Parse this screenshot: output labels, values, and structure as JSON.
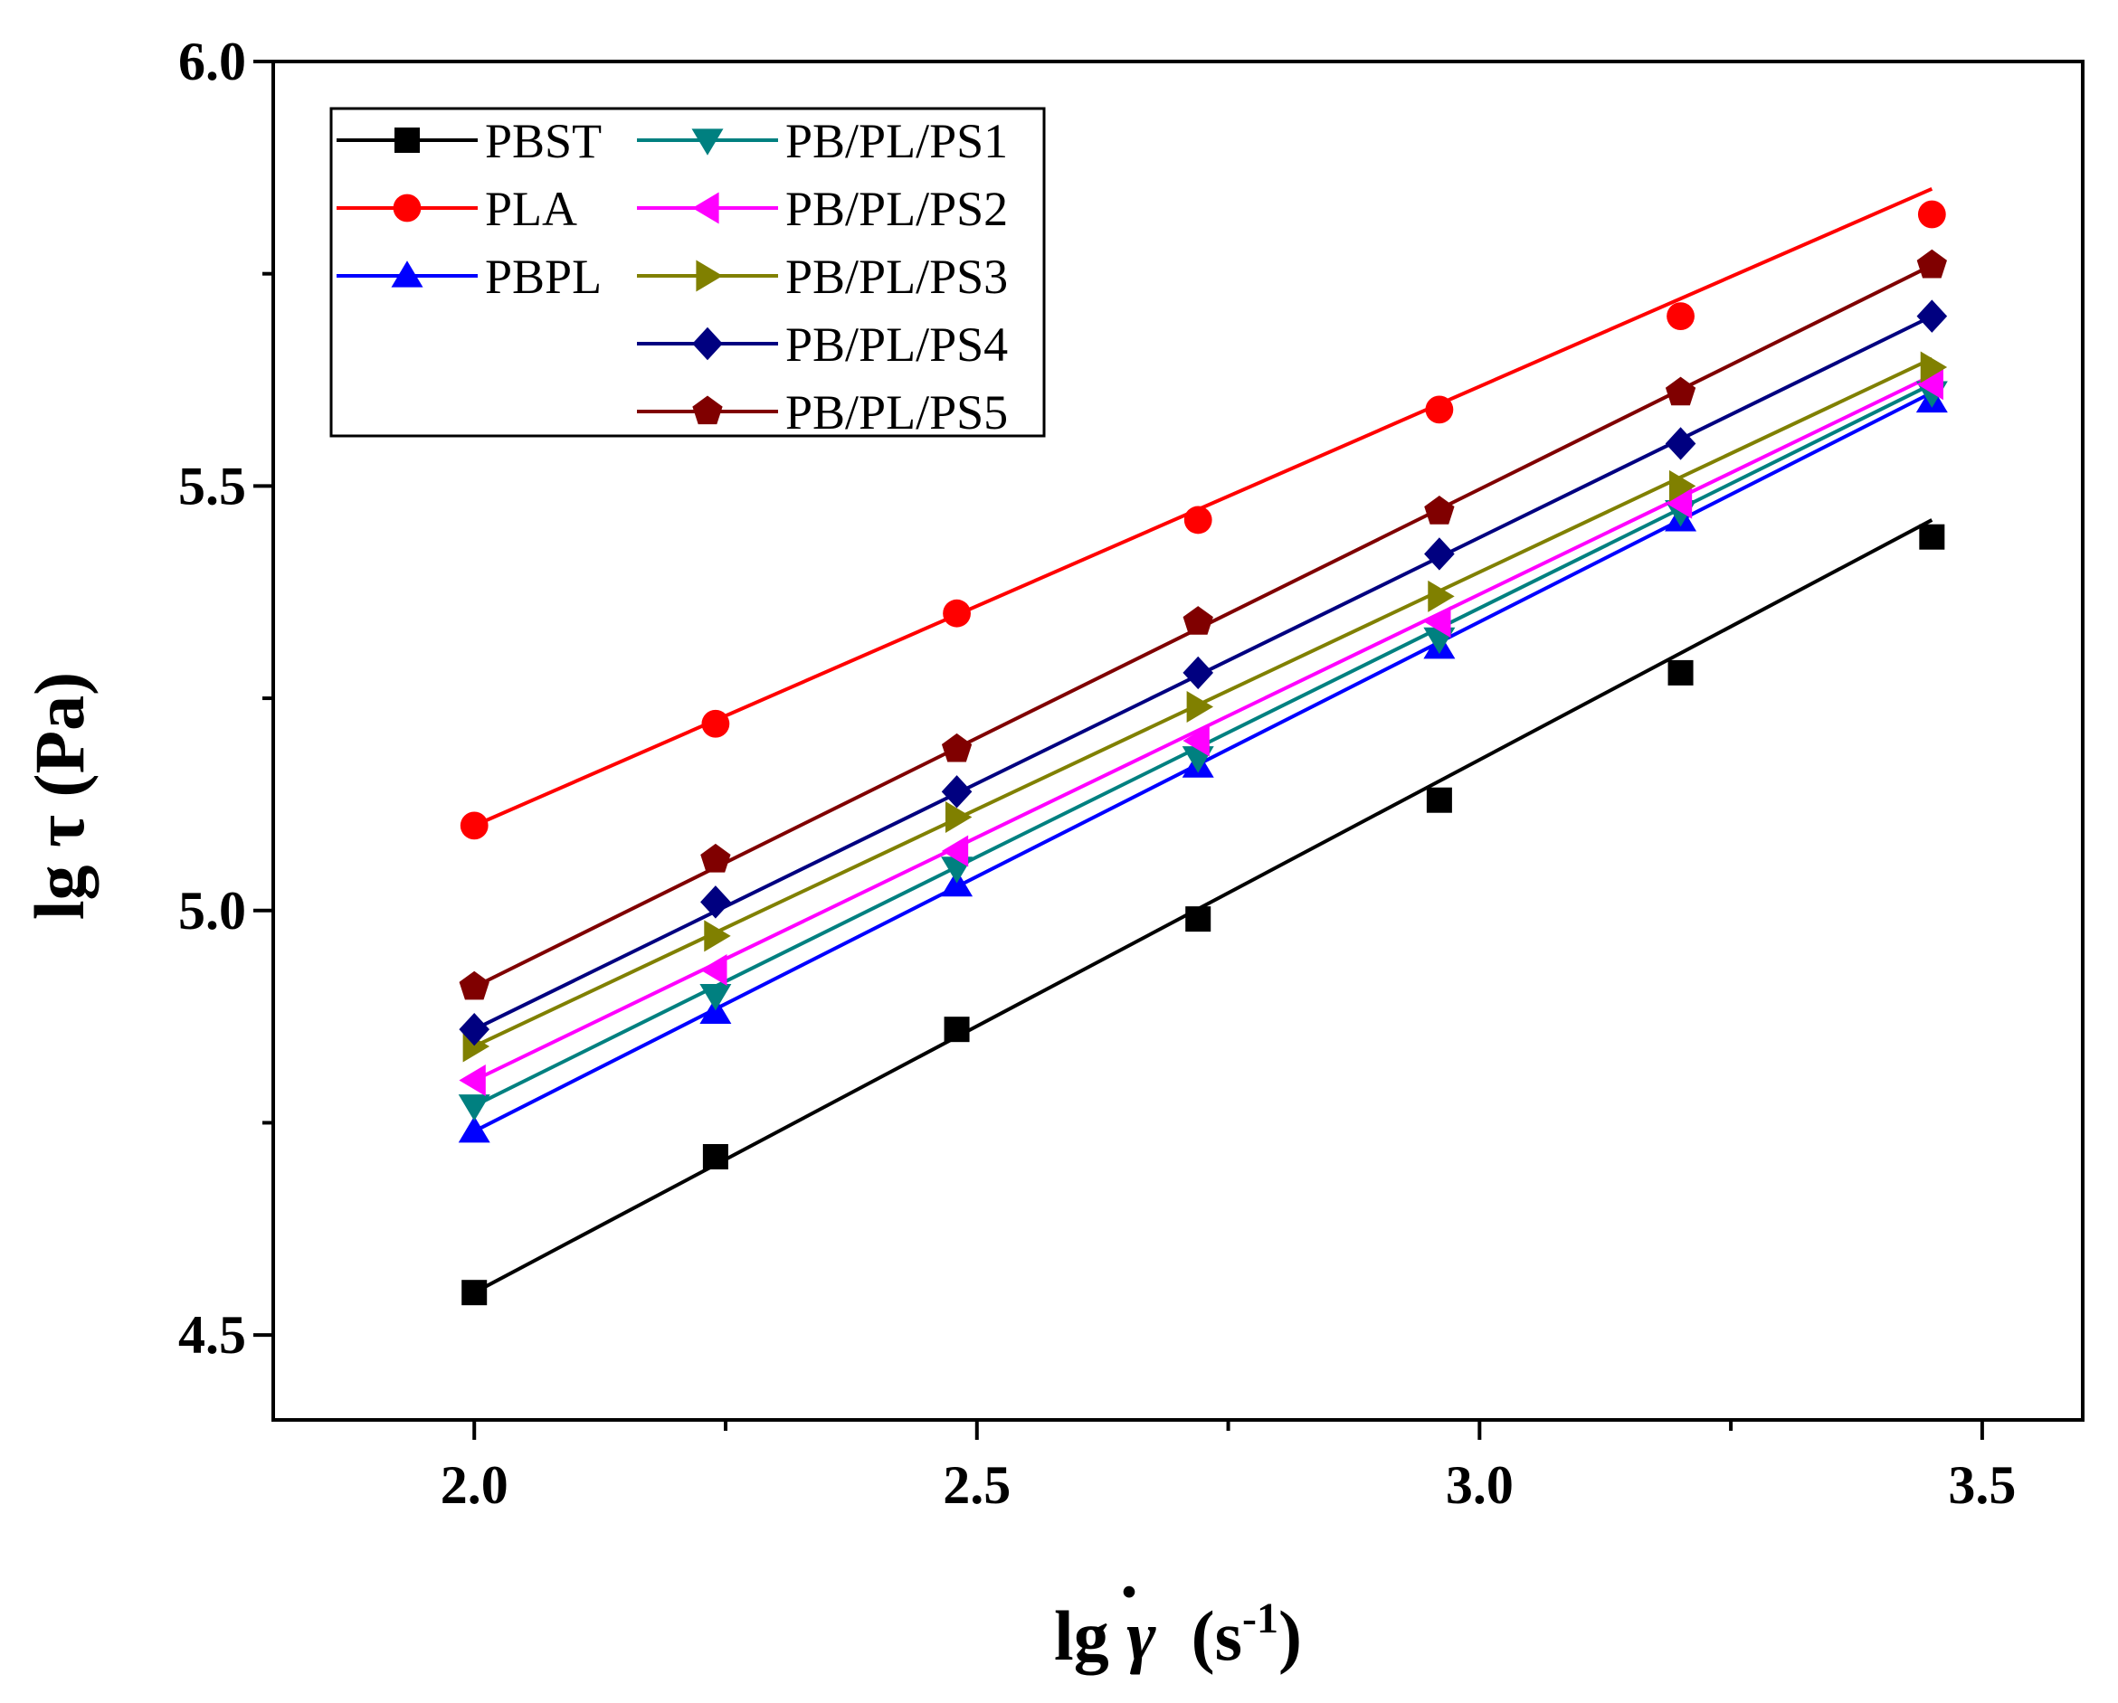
{
  "chart_data": {
    "type": "line",
    "title": "",
    "xlabel": "lg γ̇  (s⁻¹)",
    "xlabel_parts": {
      "prefix": "lg ",
      "symbol": "γ",
      "dot": "·",
      "unit_open": "  (s",
      "superscript": "-1",
      "unit_close": ")"
    },
    "ylabel": "lg τ  (Pa)",
    "xlim": [
      1.8,
      3.6
    ],
    "ylim": [
      4.4,
      6.0
    ],
    "xticks": [
      2.0,
      2.5,
      3.0,
      3.5
    ],
    "xtick_labels": [
      "2.0",
      "2.5",
      "3.0",
      "3.5"
    ],
    "xminor": [
      2.25,
      2.75,
      3.25
    ],
    "yticks": [
      4.5,
      5.0,
      5.5,
      6.0
    ],
    "ytick_labels": [
      "4.5",
      "5.0",
      "5.5",
      "6.0"
    ],
    "yminor": [
      4.75,
      5.25,
      5.75
    ],
    "grid": false,
    "legend_position": "top-left",
    "x": [
      2.0,
      2.24,
      2.48,
      2.72,
      2.96,
      3.2,
      3.45
    ],
    "series": [
      {
        "name": "PBST",
        "color": "#000000",
        "marker": "square",
        "values": [
          4.55,
          4.71,
          4.86,
          4.99,
          5.13,
          5.28,
          5.44
        ],
        "fit": [
          [
            2.0,
            4.55
          ],
          [
            3.45,
            5.46
          ]
        ]
      },
      {
        "name": "PLA",
        "color": "#ff0000",
        "marker": "circle",
        "values": [
          5.1,
          5.22,
          5.35,
          5.46,
          5.59,
          5.7,
          5.82
        ],
        "fit": [
          [
            2.0,
            5.1
          ],
          [
            3.45,
            5.85
          ]
        ]
      },
      {
        "name": "PBPL",
        "color": "#0000ff",
        "marker": "triangle-up",
        "values": [
          4.74,
          4.88,
          5.03,
          5.17,
          5.31,
          5.46,
          5.6
        ],
        "fit": [
          [
            2.0,
            4.74
          ],
          [
            3.45,
            5.61
          ]
        ]
      },
      {
        "name": "PB/PL/PS1",
        "color": "#008080",
        "marker": "triangle-down",
        "values": [
          4.77,
          4.9,
          5.05,
          5.18,
          5.32,
          5.47,
          5.61
        ],
        "fit": [
          [
            2.0,
            4.77
          ],
          [
            3.45,
            5.62
          ]
        ]
      },
      {
        "name": "PB/PL/PS2",
        "color": "#ff00ff",
        "marker": "triangle-left",
        "values": [
          4.8,
          4.93,
          5.07,
          5.2,
          5.34,
          5.48,
          5.62
        ],
        "fit": [
          [
            2.0,
            4.8
          ],
          [
            3.45,
            5.63
          ]
        ]
      },
      {
        "name": "PB/PL/PS3",
        "color": "#808000",
        "marker": "triangle-right",
        "values": [
          4.84,
          4.97,
          5.11,
          5.24,
          5.37,
          5.5,
          5.64
        ],
        "fit": [
          [
            2.0,
            4.84
          ],
          [
            3.45,
            5.65
          ]
        ]
      },
      {
        "name": "PB/PL/PS4",
        "color": "#000080",
        "marker": "diamond",
        "values": [
          4.86,
          5.01,
          5.14,
          5.28,
          5.42,
          5.55,
          5.7
        ],
        "fit": [
          [
            2.0,
            4.86
          ],
          [
            3.45,
            5.7
          ]
        ]
      },
      {
        "name": "PB/PL/PS5",
        "color": "#800000",
        "marker": "pentagon",
        "values": [
          4.91,
          5.06,
          5.19,
          5.34,
          5.47,
          5.61,
          5.76
        ],
        "fit": [
          [
            2.0,
            4.91
          ],
          [
            3.45,
            5.76
          ]
        ]
      }
    ]
  }
}
